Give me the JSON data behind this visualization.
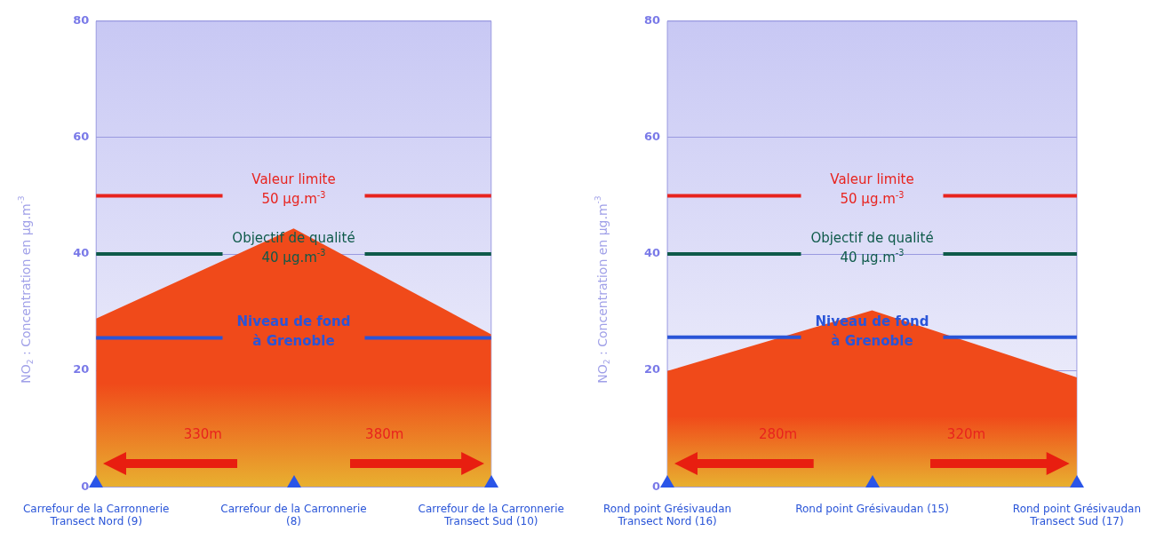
{
  "chart_data": [
    {
      "type": "area",
      "categories": [
        "Carrefour de la Carronnerie\nTransect Nord (9)",
        "Carrefour de la Carronnerie\n(8)",
        "Carrefour de la Carronnerie\nTransect Sud (10)"
      ],
      "series": [
        {
          "color": "#f04a1a",
          "values": [
            28.9,
            44.4,
            26.2
          ]
        }
      ],
      "ylabel": "NO$_{2}$ : Concentration en µg.m$^{-3}$",
      "ylim": [
        0,
        80
      ],
      "yticks": [
        0,
        20,
        40,
        60,
        80
      ],
      "grid": "y",
      "marker": "none",
      "legend": false,
      "ref_lines": [
        {
          "axis": "y",
          "value": 50,
          "label": "Valeur limite\n50 µg.m$^{-3}$",
          "color": "#e8231e"
        },
        {
          "axis": "y",
          "value": 40,
          "label": "Objectif de qualité\n40 µg.m$^{-3}$",
          "color": "#0e5a4a"
        },
        {
          "axis": "y",
          "value": 25.6,
          "label": "Niveau de fond\nà Grenoble",
          "color": "#2a55d8"
        }
      ],
      "annotations": [
        "330m",
        "380m"
      ]
    },
    {
      "type": "area",
      "categories": [
        "Rond point Grésivaudan\nTransect Nord (16)",
        "Rond point Grésivaudan (15)",
        "Rond point Grésivaudan\nTransect Sud (17)"
      ],
      "series": [
        {
          "color": "#f04a1a",
          "values": [
            19.9,
            30.3,
            18.8
          ]
        }
      ],
      "ylabel": "NO$_{2}$ : Concentration en µg.m$^{-3}$",
      "ylim": [
        0,
        80
      ],
      "yticks": [
        0,
        20,
        40,
        60,
        80
      ],
      "grid": "y",
      "marker": "none",
      "legend": false,
      "ref_lines": [
        {
          "axis": "y",
          "value": 50,
          "label": "Valeur limite\n50 µg.m$^{-3}$",
          "color": "#e8231e"
        },
        {
          "axis": "y",
          "value": 40,
          "label": "Objectif de qualité\n40 µg.m$^{-3}$",
          "color": "#0e5a4a"
        },
        {
          "axis": "y",
          "value": 25.7,
          "label": "Niveau de fond\nà Grenoble",
          "color": "#2a55d8"
        }
      ],
      "annotations": [
        "280m",
        "320m"
      ]
    }
  ]
}
